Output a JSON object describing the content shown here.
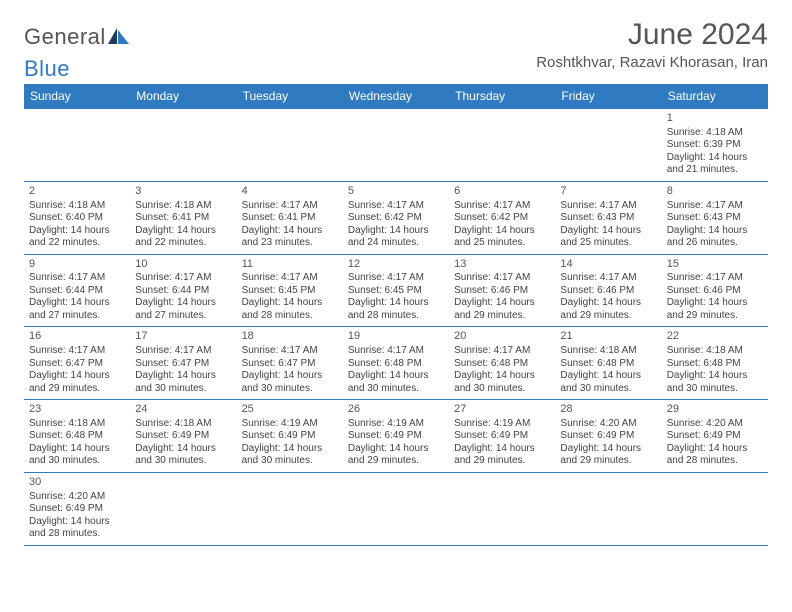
{
  "brand": {
    "name_part1": "General",
    "name_part2": "Blue"
  },
  "title": "June 2024",
  "location": "Roshtkhvar, Razavi Khorasan, Iran",
  "colors": {
    "header_bg": "#2f7ac0",
    "header_text": "#ffffff",
    "text": "#444444",
    "title_text": "#555555",
    "rule": "#2f7ac0",
    "page_bg": "#ffffff"
  },
  "layout": {
    "columns": 7,
    "body_fontsize": 10,
    "daynum_fontsize": 11,
    "weekday_fontsize": 12,
    "title_fontsize": 30,
    "location_fontsize": 15
  },
  "weekdays": [
    "Sunday",
    "Monday",
    "Tuesday",
    "Wednesday",
    "Thursday",
    "Friday",
    "Saturday"
  ],
  "weeks": [
    [
      null,
      null,
      null,
      null,
      null,
      null,
      {
        "n": "1",
        "sr": "Sunrise: 4:18 AM",
        "ss": "Sunset: 6:39 PM",
        "d1": "Daylight: 14 hours",
        "d2": "and 21 minutes."
      }
    ],
    [
      {
        "n": "2",
        "sr": "Sunrise: 4:18 AM",
        "ss": "Sunset: 6:40 PM",
        "d1": "Daylight: 14 hours",
        "d2": "and 22 minutes."
      },
      {
        "n": "3",
        "sr": "Sunrise: 4:18 AM",
        "ss": "Sunset: 6:41 PM",
        "d1": "Daylight: 14 hours",
        "d2": "and 22 minutes."
      },
      {
        "n": "4",
        "sr": "Sunrise: 4:17 AM",
        "ss": "Sunset: 6:41 PM",
        "d1": "Daylight: 14 hours",
        "d2": "and 23 minutes."
      },
      {
        "n": "5",
        "sr": "Sunrise: 4:17 AM",
        "ss": "Sunset: 6:42 PM",
        "d1": "Daylight: 14 hours",
        "d2": "and 24 minutes."
      },
      {
        "n": "6",
        "sr": "Sunrise: 4:17 AM",
        "ss": "Sunset: 6:42 PM",
        "d1": "Daylight: 14 hours",
        "d2": "and 25 minutes."
      },
      {
        "n": "7",
        "sr": "Sunrise: 4:17 AM",
        "ss": "Sunset: 6:43 PM",
        "d1": "Daylight: 14 hours",
        "d2": "and 25 minutes."
      },
      {
        "n": "8",
        "sr": "Sunrise: 4:17 AM",
        "ss": "Sunset: 6:43 PM",
        "d1": "Daylight: 14 hours",
        "d2": "and 26 minutes."
      }
    ],
    [
      {
        "n": "9",
        "sr": "Sunrise: 4:17 AM",
        "ss": "Sunset: 6:44 PM",
        "d1": "Daylight: 14 hours",
        "d2": "and 27 minutes."
      },
      {
        "n": "10",
        "sr": "Sunrise: 4:17 AM",
        "ss": "Sunset: 6:44 PM",
        "d1": "Daylight: 14 hours",
        "d2": "and 27 minutes."
      },
      {
        "n": "11",
        "sr": "Sunrise: 4:17 AM",
        "ss": "Sunset: 6:45 PM",
        "d1": "Daylight: 14 hours",
        "d2": "and 28 minutes."
      },
      {
        "n": "12",
        "sr": "Sunrise: 4:17 AM",
        "ss": "Sunset: 6:45 PM",
        "d1": "Daylight: 14 hours",
        "d2": "and 28 minutes."
      },
      {
        "n": "13",
        "sr": "Sunrise: 4:17 AM",
        "ss": "Sunset: 6:46 PM",
        "d1": "Daylight: 14 hours",
        "d2": "and 29 minutes."
      },
      {
        "n": "14",
        "sr": "Sunrise: 4:17 AM",
        "ss": "Sunset: 6:46 PM",
        "d1": "Daylight: 14 hours",
        "d2": "and 29 minutes."
      },
      {
        "n": "15",
        "sr": "Sunrise: 4:17 AM",
        "ss": "Sunset: 6:46 PM",
        "d1": "Daylight: 14 hours",
        "d2": "and 29 minutes."
      }
    ],
    [
      {
        "n": "16",
        "sr": "Sunrise: 4:17 AM",
        "ss": "Sunset: 6:47 PM",
        "d1": "Daylight: 14 hours",
        "d2": "and 29 minutes."
      },
      {
        "n": "17",
        "sr": "Sunrise: 4:17 AM",
        "ss": "Sunset: 6:47 PM",
        "d1": "Daylight: 14 hours",
        "d2": "and 30 minutes."
      },
      {
        "n": "18",
        "sr": "Sunrise: 4:17 AM",
        "ss": "Sunset: 6:47 PM",
        "d1": "Daylight: 14 hours",
        "d2": "and 30 minutes."
      },
      {
        "n": "19",
        "sr": "Sunrise: 4:17 AM",
        "ss": "Sunset: 6:48 PM",
        "d1": "Daylight: 14 hours",
        "d2": "and 30 minutes."
      },
      {
        "n": "20",
        "sr": "Sunrise: 4:17 AM",
        "ss": "Sunset: 6:48 PM",
        "d1": "Daylight: 14 hours",
        "d2": "and 30 minutes."
      },
      {
        "n": "21",
        "sr": "Sunrise: 4:18 AM",
        "ss": "Sunset: 6:48 PM",
        "d1": "Daylight: 14 hours",
        "d2": "and 30 minutes."
      },
      {
        "n": "22",
        "sr": "Sunrise: 4:18 AM",
        "ss": "Sunset: 6:48 PM",
        "d1": "Daylight: 14 hours",
        "d2": "and 30 minutes."
      }
    ],
    [
      {
        "n": "23",
        "sr": "Sunrise: 4:18 AM",
        "ss": "Sunset: 6:48 PM",
        "d1": "Daylight: 14 hours",
        "d2": "and 30 minutes."
      },
      {
        "n": "24",
        "sr": "Sunrise: 4:18 AM",
        "ss": "Sunset: 6:49 PM",
        "d1": "Daylight: 14 hours",
        "d2": "and 30 minutes."
      },
      {
        "n": "25",
        "sr": "Sunrise: 4:19 AM",
        "ss": "Sunset: 6:49 PM",
        "d1": "Daylight: 14 hours",
        "d2": "and 30 minutes."
      },
      {
        "n": "26",
        "sr": "Sunrise: 4:19 AM",
        "ss": "Sunset: 6:49 PM",
        "d1": "Daylight: 14 hours",
        "d2": "and 29 minutes."
      },
      {
        "n": "27",
        "sr": "Sunrise: 4:19 AM",
        "ss": "Sunset: 6:49 PM",
        "d1": "Daylight: 14 hours",
        "d2": "and 29 minutes."
      },
      {
        "n": "28",
        "sr": "Sunrise: 4:20 AM",
        "ss": "Sunset: 6:49 PM",
        "d1": "Daylight: 14 hours",
        "d2": "and 29 minutes."
      },
      {
        "n": "29",
        "sr": "Sunrise: 4:20 AM",
        "ss": "Sunset: 6:49 PM",
        "d1": "Daylight: 14 hours",
        "d2": "and 28 minutes."
      }
    ],
    [
      {
        "n": "30",
        "sr": "Sunrise: 4:20 AM",
        "ss": "Sunset: 6:49 PM",
        "d1": "Daylight: 14 hours",
        "d2": "and 28 minutes."
      },
      null,
      null,
      null,
      null,
      null,
      null
    ]
  ]
}
